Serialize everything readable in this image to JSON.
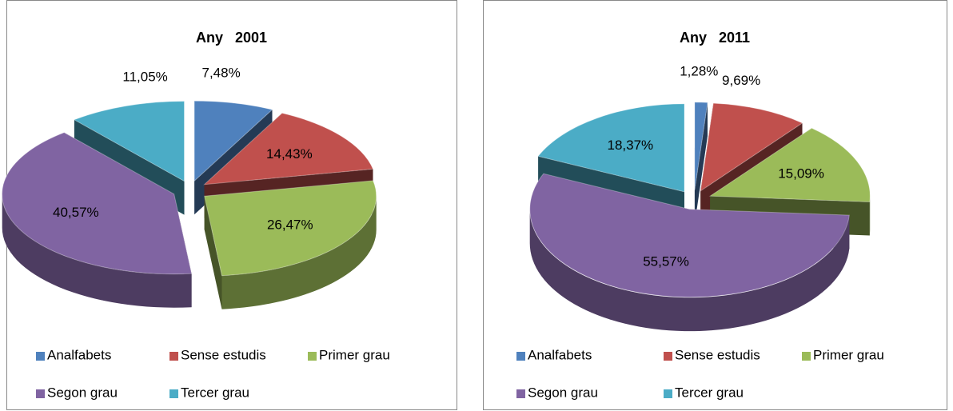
{
  "chart_data": [
    {
      "type": "pie",
      "title": "Any   2001",
      "categories": [
        "Analfabets",
        "Sense estudis",
        "Primer grau",
        "Segon grau",
        "Tercer grau"
      ],
      "values": [
        7.48,
        14.43,
        26.47,
        40.57,
        11.05
      ],
      "value_labels": [
        "7,48%",
        "14,43%",
        "26,47%",
        "40,57%",
        "11,05%"
      ],
      "colors": [
        "#4f81bd",
        "#c0504d",
        "#9bbb59",
        "#8064a2",
        "#4bacc6"
      ],
      "legend": "bottom"
    },
    {
      "type": "pie",
      "title": "Any   2011",
      "categories": [
        "Analfabets",
        "Sense estudis",
        "Primer grau",
        "Segon grau",
        "Tercer grau"
      ],
      "values": [
        1.28,
        9.69,
        15.09,
        55.57,
        18.37
      ],
      "value_labels": [
        "1,28%",
        "9,69%",
        "15,09%",
        "55,57%",
        "18,37%"
      ],
      "colors": [
        "#4f81bd",
        "#c0504d",
        "#9bbb59",
        "#8064a2",
        "#4bacc6"
      ],
      "legend": "bottom"
    }
  ]
}
